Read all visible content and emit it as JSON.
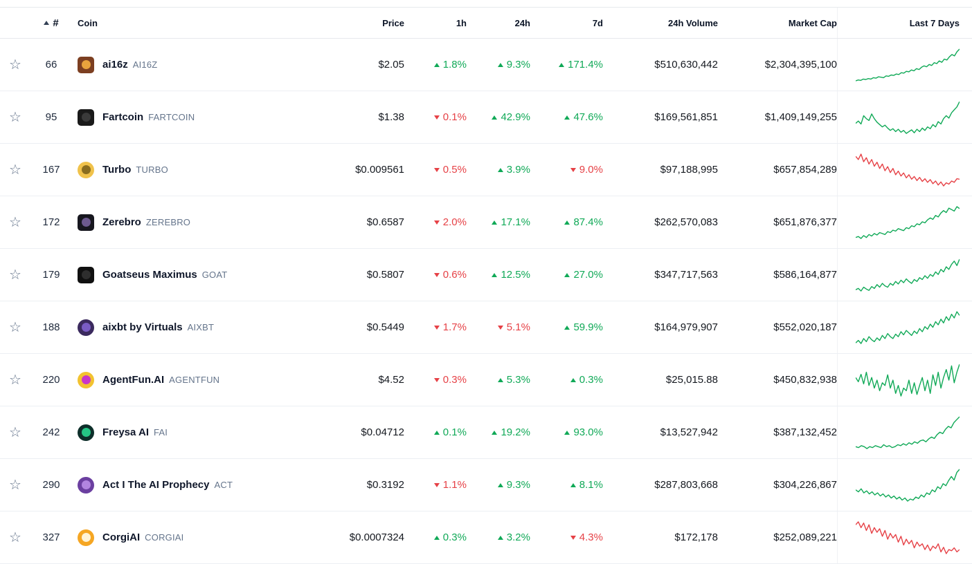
{
  "table": {
    "colors": {
      "up": "#10a957",
      "down": "#e64146"
    },
    "headers": {
      "rank": "#",
      "coin": "Coin",
      "price": "Price",
      "h1": "1h",
      "h24": "24h",
      "d7": "7d",
      "volume": "24h Volume",
      "market_cap": "Market Cap",
      "last7": "Last 7 Days"
    },
    "icons": {
      "star": "watchlist-star-icon",
      "sort": "sort-ascending-icon"
    },
    "rows": [
      {
        "rank": "66",
        "name": "ai16z",
        "symbol": "AI16Z",
        "price": "$2.05",
        "h1": "1.8%",
        "h1_dir": "up",
        "h24": "9.3%",
        "h24_dir": "up",
        "d7": "171.4%",
        "d7_dir": "up",
        "volume": "$510,630,442",
        "market_cap": "$2,304,395,100",
        "icon_bg": "#7c3f21",
        "icon_fg": "#e8a33d",
        "icon_shape": "square",
        "spark_dir": "up",
        "spark": [
          22,
          24,
          23,
          26,
          25,
          27,
          26,
          29,
          28,
          31,
          30,
          29,
          33,
          32,
          35,
          34,
          37,
          36,
          40,
          39,
          43,
          42,
          46,
          44,
          49,
          47,
          52,
          55,
          53,
          58,
          56,
          62,
          60,
          66,
          63,
          70,
          68,
          75,
          80,
          77,
          86,
          92
        ]
      },
      {
        "rank": "95",
        "name": "Fartcoin",
        "symbol": "FARTCOIN",
        "price": "$1.38",
        "h1": "0.1%",
        "h1_dir": "down",
        "h24": "42.9%",
        "h24_dir": "up",
        "d7": "47.6%",
        "d7_dir": "up",
        "volume": "$169,561,851",
        "market_cap": "$1,409,149,255",
        "icon_bg": "#1a1a1a",
        "icon_fg": "#3a3a3a",
        "icon_shape": "square",
        "spark_dir": "up",
        "spark": [
          42,
          46,
          41,
          55,
          50,
          47,
          58,
          50,
          44,
          40,
          36,
          39,
          34,
          30,
          33,
          28,
          32,
          27,
          30,
          25,
          28,
          31,
          26,
          32,
          28,
          34,
          30,
          36,
          33,
          40,
          36,
          45,
          41,
          50,
          55,
          51,
          60,
          65,
          70,
          79
        ]
      },
      {
        "rank": "167",
        "name": "Turbo",
        "symbol": "TURBO",
        "price": "$0.009561",
        "h1": "0.5%",
        "h1_dir": "down",
        "h24": "3.9%",
        "h24_dir": "up",
        "d7": "9.0%",
        "d7_dir": "down",
        "volume": "$97,188,995",
        "market_cap": "$657,854,289",
        "icon_bg": "#f0c24b",
        "icon_fg": "#8a6d1f",
        "icon_shape": "circle",
        "spark_dir": "down",
        "spark": [
          85,
          78,
          90,
          73,
          82,
          68,
          78,
          63,
          72,
          58,
          68,
          53,
          62,
          49,
          58,
          44,
          52,
          41,
          48,
          37,
          44,
          34,
          40,
          31,
          38,
          29,
          35,
          27,
          33,
          24,
          30,
          21,
          28,
          19,
          26,
          23,
          30,
          27,
          35,
          34
        ]
      },
      {
        "rank": "172",
        "name": "Zerebro",
        "symbol": "ZEREBRO",
        "price": "$0.6587",
        "h1": "2.0%",
        "h1_dir": "down",
        "h24": "17.1%",
        "h24_dir": "up",
        "d7": "87.4%",
        "d7_dir": "up",
        "volume": "$262,570,083",
        "market_cap": "$651,876,377",
        "icon_bg": "#17171f",
        "icon_fg": "#6d5a8f",
        "icon_shape": "square",
        "spark_dir": "up",
        "spark": [
          30,
          32,
          28,
          34,
          30,
          36,
          33,
          38,
          35,
          40,
          38,
          36,
          42,
          40,
          45,
          43,
          48,
          46,
          44,
          50,
          48,
          54,
          52,
          58,
          56,
          62,
          60,
          66,
          70,
          67,
          75,
          72,
          80,
          85,
          81,
          90,
          87,
          84,
          93,
          89
        ]
      },
      {
        "rank": "179",
        "name": "Goatseus Maximus",
        "symbol": "GOAT",
        "price": "$0.5807",
        "h1": "0.6%",
        "h1_dir": "down",
        "h24": "12.5%",
        "h24_dir": "up",
        "d7": "27.0%",
        "d7_dir": "up",
        "volume": "$347,717,563",
        "market_cap": "$586,164,877",
        "icon_bg": "#101010",
        "icon_fg": "#2e2e2e",
        "icon_shape": "square",
        "spark_dir": "up",
        "spark": [
          34,
          36,
          32,
          38,
          35,
          33,
          39,
          36,
          42,
          38,
          44,
          40,
          38,
          44,
          41,
          47,
          43,
          49,
          45,
          51,
          47,
          44,
          50,
          47,
          53,
          50,
          56,
          52,
          58,
          55,
          62,
          58,
          66,
          62,
          70,
          66,
          74,
          79,
          72,
          82
        ]
      },
      {
        "rank": "188",
        "name": "aixbt by Virtuals",
        "symbol": "AIXBT",
        "price": "$0.5449",
        "h1": "1.7%",
        "h1_dir": "down",
        "h24": "5.1%",
        "h24_dir": "down",
        "d7": "59.9%",
        "d7_dir": "up",
        "volume": "$164,979,907",
        "market_cap": "$552,020,187",
        "icon_bg": "#3b2a5e",
        "icon_fg": "#7a5cc4",
        "icon_shape": "circle",
        "spark_dir": "up",
        "spark": [
          28,
          32,
          27,
          35,
          30,
          38,
          33,
          30,
          36,
          32,
          40,
          35,
          43,
          38,
          35,
          42,
          38,
          46,
          41,
          48,
          44,
          40,
          47,
          43,
          51,
          46,
          54,
          50,
          58,
          53,
          62,
          57,
          66,
          60,
          70,
          64,
          74,
          68,
          78,
          72
        ]
      },
      {
        "rank": "220",
        "name": "AgentFun.AI",
        "symbol": "AGENTFUN",
        "price": "$4.52",
        "h1": "0.3%",
        "h1_dir": "down",
        "h24": "5.3%",
        "h24_dir": "up",
        "d7": "0.3%",
        "d7_dir": "up",
        "volume": "$25,015.88",
        "market_cap": "$450,832,938",
        "icon_bg": "#f2c230",
        "icon_fg": "#c935c9",
        "icon_shape": "circle",
        "spark_dir": "up",
        "spark": [
          60,
          52,
          66,
          48,
          70,
          45,
          60,
          40,
          55,
          35,
          50,
          45,
          65,
          40,
          55,
          30,
          45,
          25,
          40,
          35,
          55,
          30,
          50,
          28,
          45,
          60,
          35,
          55,
          30,
          65,
          45,
          70,
          40,
          60,
          75,
          55,
          82,
          50,
          70,
          85
        ]
      },
      {
        "rank": "242",
        "name": "Freysa AI",
        "symbol": "FAI",
        "price": "$0.04712",
        "h1": "0.1%",
        "h1_dir": "up",
        "h24": "19.2%",
        "h24_dir": "up",
        "d7": "93.0%",
        "d7_dir": "up",
        "volume": "$13,527,942",
        "market_cap": "$387,132,452",
        "icon_bg": "#0e2f2a",
        "icon_fg": "#25c685",
        "icon_shape": "circle",
        "spark_dir": "up",
        "spark": [
          30,
          28,
          32,
          30,
          26,
          30,
          28,
          32,
          30,
          28,
          34,
          30,
          32,
          28,
          30,
          34,
          32,
          36,
          33,
          38,
          35,
          40,
          37,
          42,
          44,
          40,
          46,
          50,
          47,
          55,
          60,
          57,
          66,
          72,
          69,
          80,
          86,
          92
        ]
      },
      {
        "rank": "290",
        "name": "Act I The AI Prophecy",
        "symbol": "ACT",
        "price": "$0.3192",
        "h1": "1.1%",
        "h1_dir": "down",
        "h24": "9.3%",
        "h24_dir": "up",
        "d7": "8.1%",
        "d7_dir": "up",
        "volume": "$287,803,668",
        "market_cap": "$304,226,867",
        "icon_bg": "#6b3fa0",
        "icon_fg": "#b285e0",
        "icon_shape": "circle",
        "spark_dir": "up",
        "spark": [
          52,
          48,
          54,
          46,
          50,
          44,
          48,
          42,
          46,
          40,
          44,
          38,
          42,
          36,
          40,
          34,
          38,
          32,
          36,
          30,
          34,
          32,
          38,
          35,
          42,
          38,
          46,
          43,
          52,
          48,
          58,
          54,
          64,
          60,
          70,
          78,
          71,
          86,
          92
        ]
      },
      {
        "rank": "327",
        "name": "CorgiAI",
        "symbol": "CORGIAI",
        "price": "$0.0007324",
        "h1": "0.3%",
        "h1_dir": "up",
        "h24": "3.2%",
        "h24_dir": "up",
        "d7": "4.3%",
        "d7_dir": "down",
        "volume": "$172,178",
        "market_cap": "$252,089,221",
        "icon_bg": "#f5a623",
        "icon_fg": "#fff3d6",
        "icon_shape": "circle",
        "spark_dir": "down",
        "spark": [
          85,
          90,
          80,
          88,
          75,
          85,
          70,
          80,
          72,
          78,
          65,
          75,
          60,
          70,
          62,
          68,
          55,
          65,
          50,
          60,
          52,
          58,
          45,
          55,
          48,
          52,
          42,
          50,
          40,
          48,
          44,
          52,
          38,
          46,
          35,
          42,
          40,
          45,
          38,
          42
        ]
      }
    ]
  }
}
